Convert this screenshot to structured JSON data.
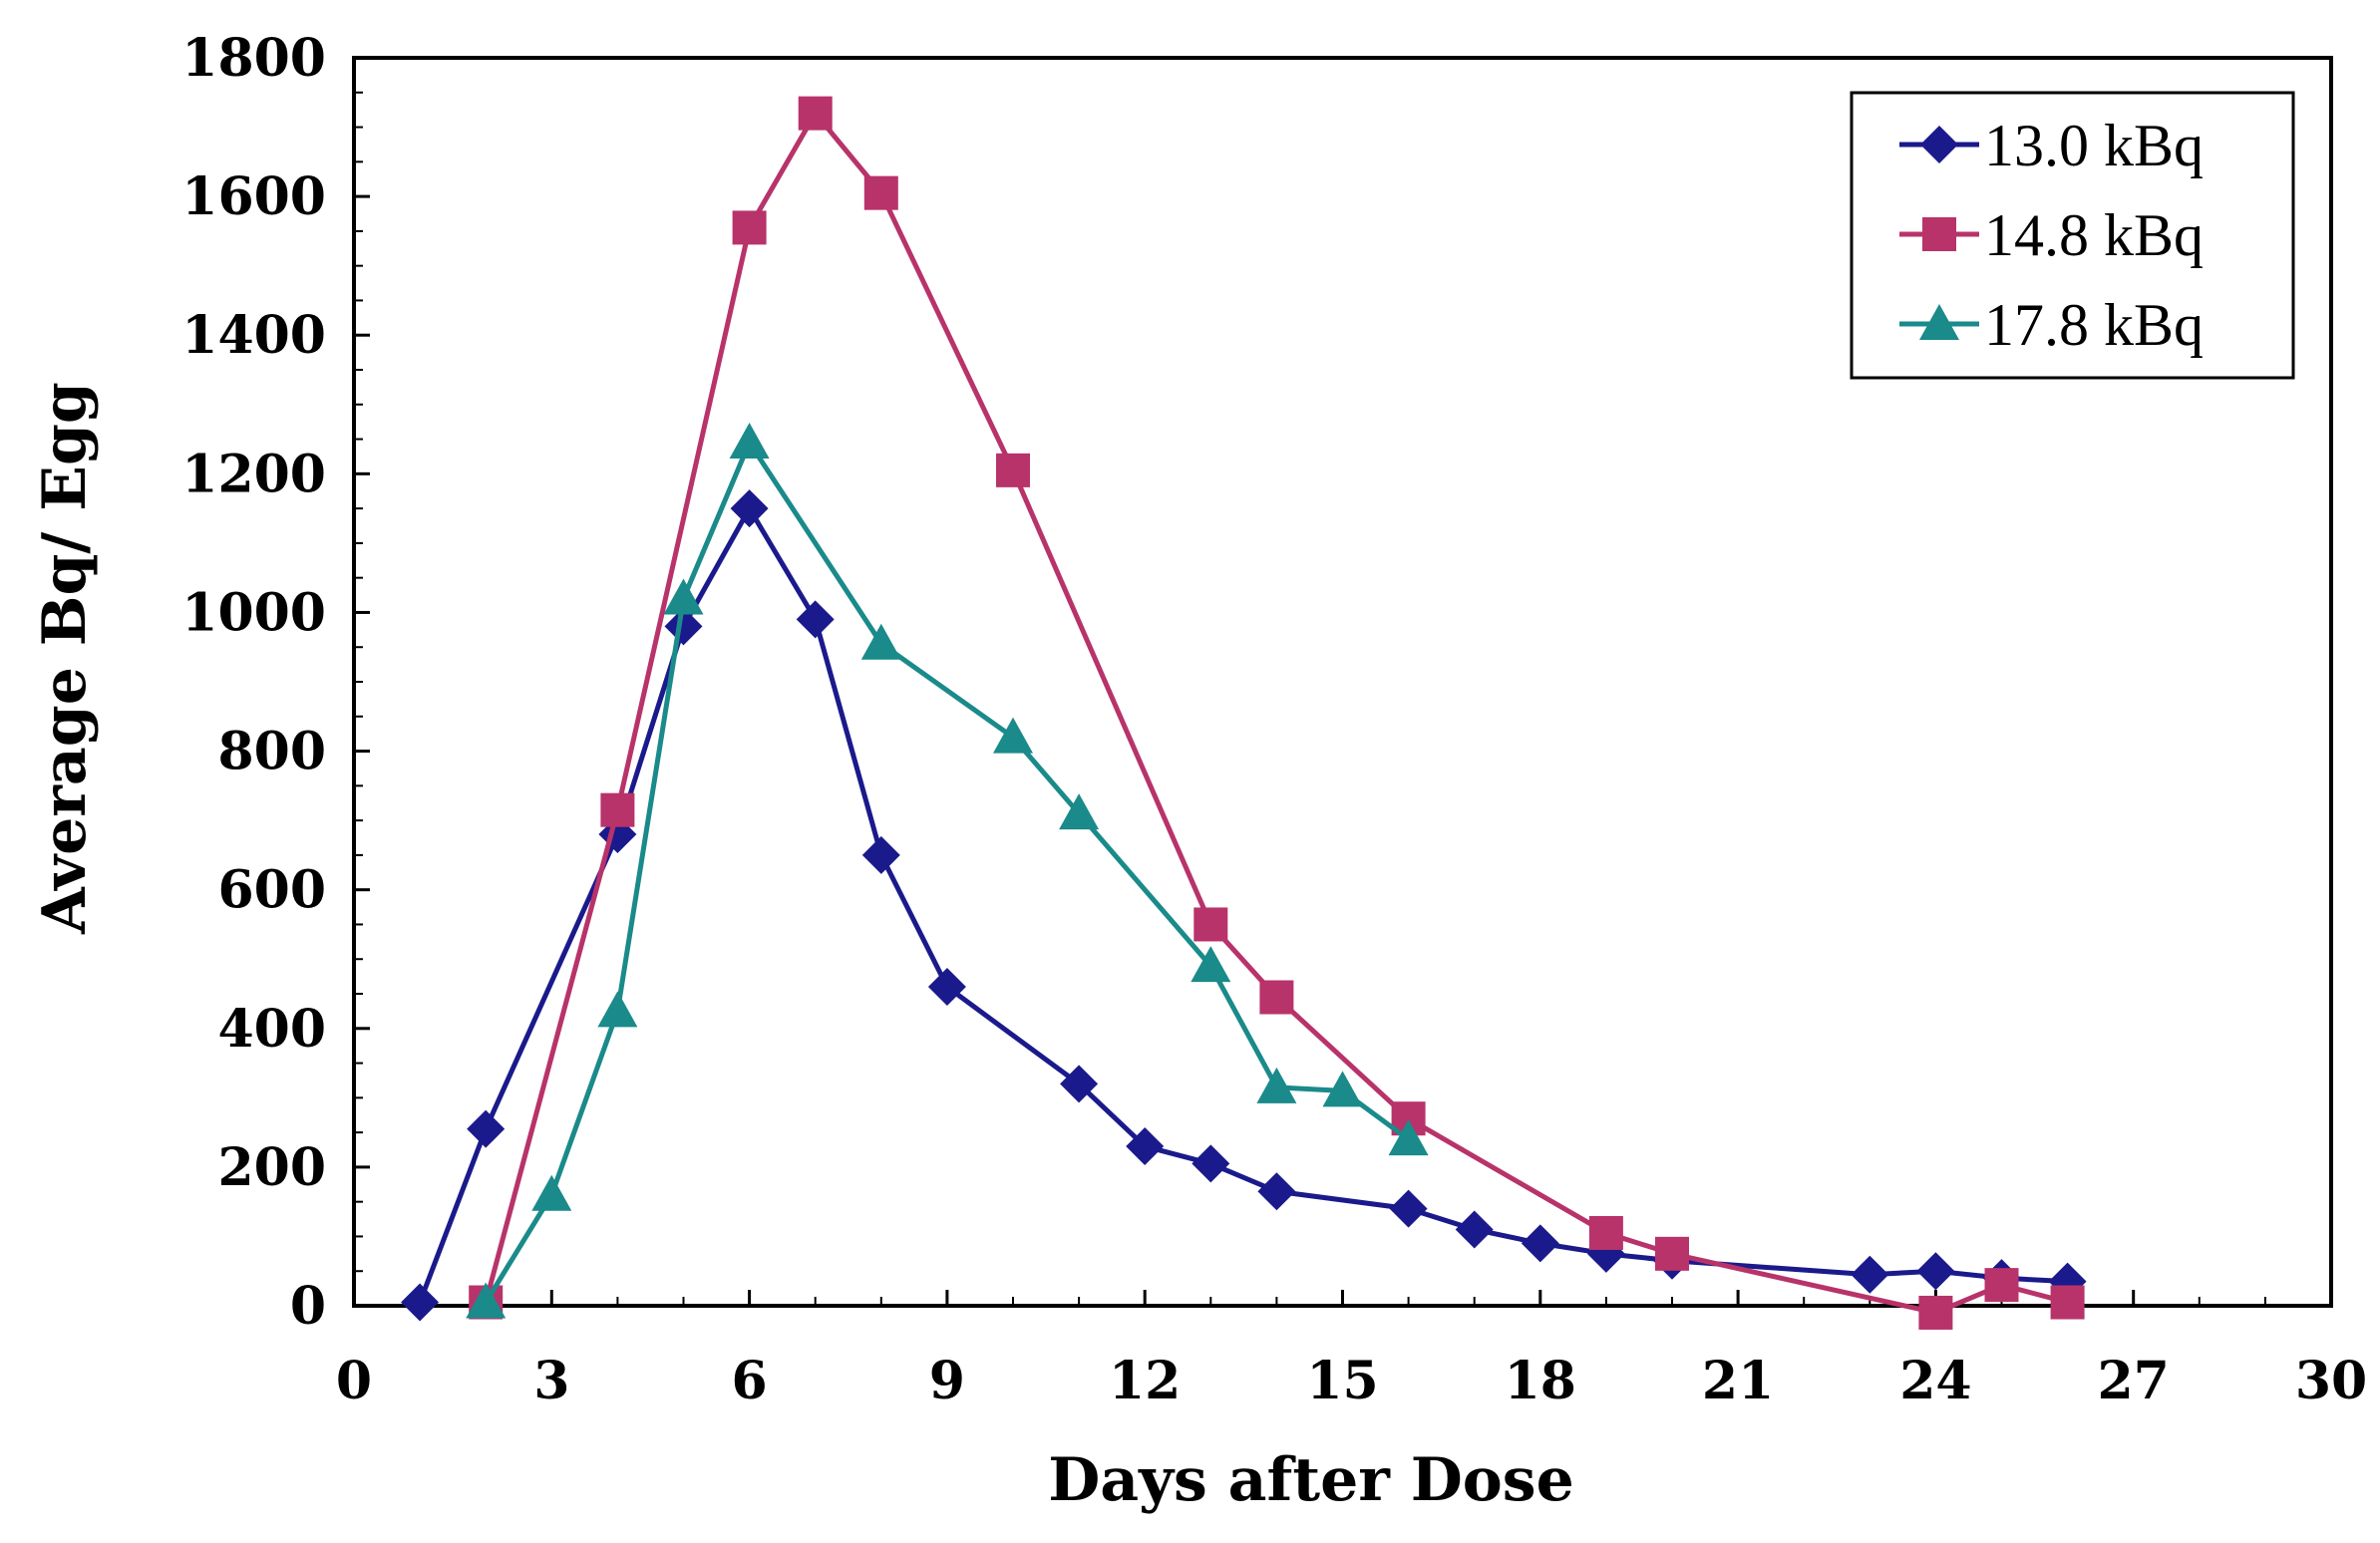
{
  "chart_data": {
    "type": "line",
    "title": "",
    "xlabel": "Days after Dose",
    "ylabel": "Average Bq/ Egg",
    "xlim": [
      0,
      30
    ],
    "ylim": [
      0,
      1800
    ],
    "x_ticks": [
      0,
      3,
      6,
      9,
      12,
      15,
      18,
      21,
      24,
      27,
      30
    ],
    "y_ticks": [
      0,
      200,
      400,
      600,
      800,
      1000,
      1200,
      1400,
      1600,
      1800
    ],
    "grid": false,
    "legend_position": "top-right",
    "series": [
      {
        "name": "13.0 kBq",
        "color": "#1a1a8c",
        "marker": "diamond",
        "x": [
          1,
          2,
          4,
          5,
          6,
          7,
          8,
          9,
          11,
          12,
          13,
          14,
          16,
          17,
          18,
          19,
          20,
          23,
          24,
          25,
          26
        ],
        "y": [
          5,
          255,
          680,
          980,
          1150,
          990,
          650,
          460,
          320,
          230,
          205,
          165,
          140,
          110,
          90,
          75,
          65,
          45,
          50,
          40,
          35
        ]
      },
      {
        "name": "14.8 kBq",
        "color": "#b8336a",
        "marker": "square",
        "x": [
          2,
          4,
          6,
          7,
          8,
          10,
          13,
          14,
          16,
          19,
          20,
          24,
          25,
          26
        ],
        "y": [
          5,
          715,
          1555,
          1720,
          1605,
          1205,
          550,
          445,
          270,
          105,
          75,
          -10,
          30,
          5
        ]
      },
      {
        "name": "17.8 kBq",
        "color": "#1a8a8a",
        "marker": "triangle",
        "x": [
          2,
          3,
          4,
          5,
          6,
          8,
          10,
          11,
          13,
          14,
          15,
          16
        ],
        "y": [
          5,
          160,
          425,
          1020,
          1245,
          955,
          820,
          710,
          490,
          315,
          310,
          240
        ]
      }
    ]
  }
}
